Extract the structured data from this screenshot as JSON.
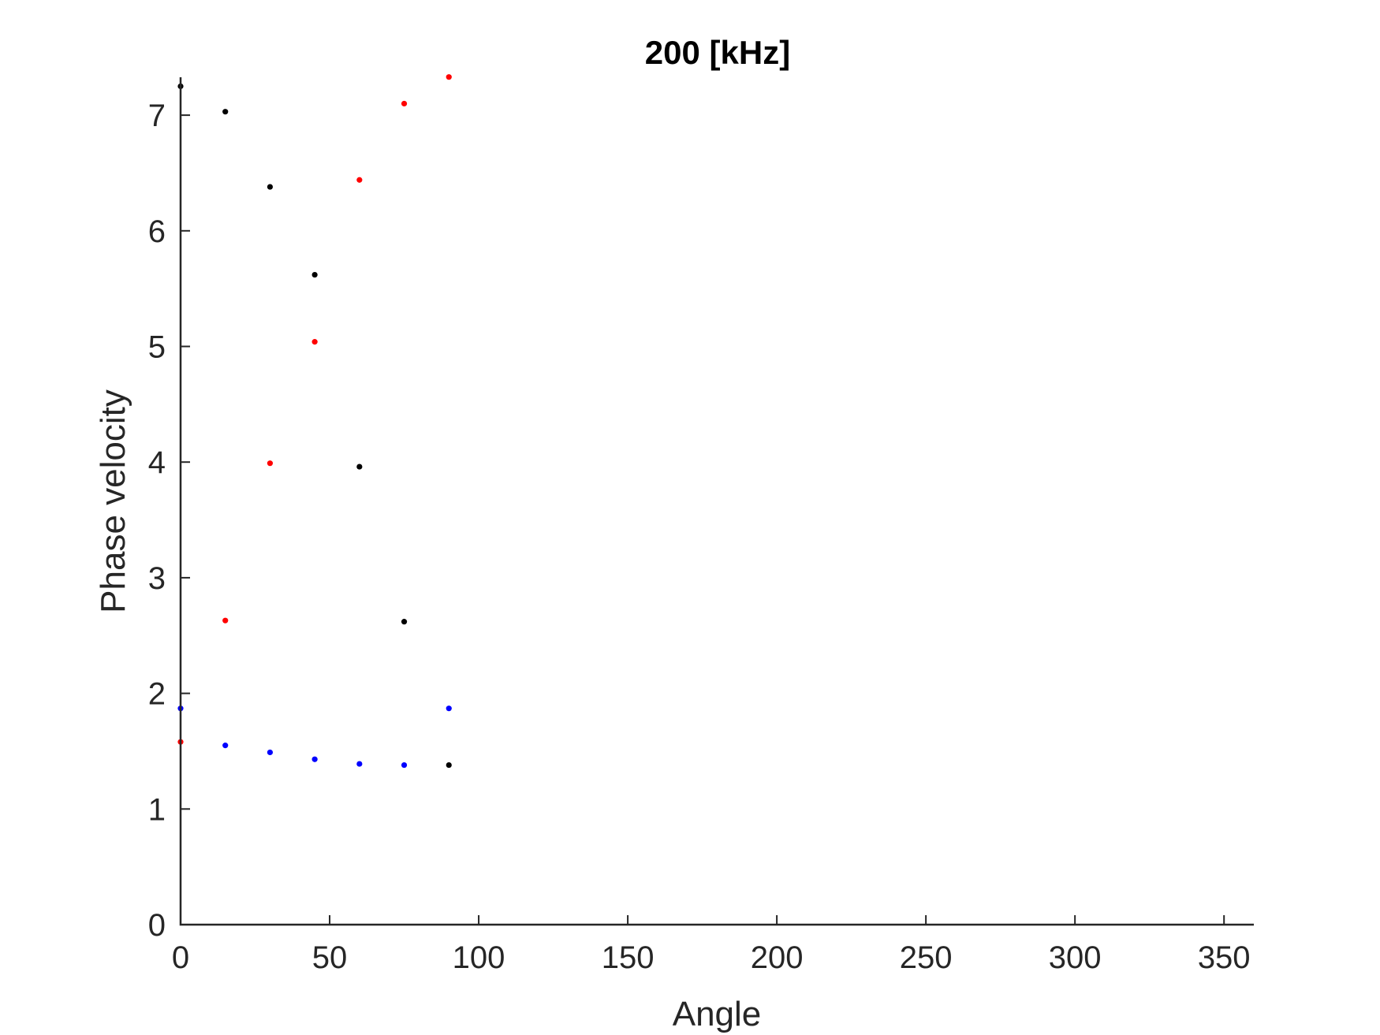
{
  "chart_data": {
    "type": "scatter",
    "title": "200 [kHz]",
    "xlabel": "Angle",
    "ylabel": "Phase velocity",
    "xlim": [
      0,
      360
    ],
    "ylim": [
      0,
      7.3
    ],
    "xticks": [
      0,
      50,
      100,
      150,
      200,
      250,
      300,
      350
    ],
    "yticks": [
      0,
      1,
      2,
      3,
      4,
      5,
      6,
      7
    ],
    "xtick_labels": [
      "0",
      "50",
      "100",
      "150",
      "200",
      "250",
      "300",
      "350"
    ],
    "ytick_labels": [
      "0",
      "1",
      "2",
      "3",
      "4",
      "5",
      "6",
      "7"
    ],
    "grid": false,
    "series": [
      {
        "color": "#000000",
        "x": [
          0,
          15,
          30,
          45,
          60,
          75,
          90
        ],
        "y": [
          7.25,
          7.03,
          6.38,
          5.62,
          3.96,
          2.62,
          1.38
        ]
      },
      {
        "color": "#ff0000",
        "x": [
          0,
          15,
          30,
          45,
          60,
          75,
          90
        ],
        "y": [
          1.58,
          2.63,
          3.99,
          5.04,
          6.44,
          7.1,
          7.33
        ]
      },
      {
        "color": "#0000ff",
        "x": [
          0,
          15,
          30,
          45,
          60,
          75,
          90
        ],
        "y": [
          1.87,
          1.55,
          1.49,
          1.43,
          1.39,
          1.38,
          1.87
        ]
      }
    ]
  }
}
